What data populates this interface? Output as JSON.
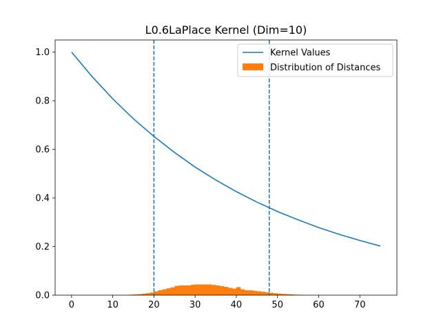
{
  "chart_data": {
    "type": "line",
    "title": "L0.6LaPlace Kernel (Dim=10)",
    "xlabel": "",
    "ylabel": "",
    "xlim": [
      -4,
      79
    ],
    "ylim": [
      0,
      1.05
    ],
    "xticks": [
      0,
      10,
      20,
      30,
      40,
      50,
      60,
      70
    ],
    "yticks": [
      0.0,
      0.2,
      0.4,
      0.6,
      0.8,
      1.0
    ],
    "xtick_labels": [
      "0",
      "10",
      "20",
      "30",
      "40",
      "50",
      "60",
      "70"
    ],
    "ytick_labels": [
      "0.0",
      "0.2",
      "0.4",
      "0.6",
      "0.8",
      "1.0"
    ],
    "grid": false,
    "legend_position": "top-right",
    "series": [
      {
        "name": "Kernel Values",
        "type": "line",
        "color": "#1f77b4",
        "x": [
          0,
          5,
          10,
          15,
          20,
          25,
          30,
          35,
          40,
          45,
          50,
          55,
          60,
          65,
          70,
          75
        ],
        "y": [
          1.0,
          0.899,
          0.808,
          0.726,
          0.653,
          0.587,
          0.527,
          0.474,
          0.426,
          0.383,
          0.344,
          0.31,
          0.278,
          0.25,
          0.225,
          0.202
        ]
      },
      {
        "name": "Distribution of Distances",
        "type": "histogram",
        "color": "#ff7f0e",
        "bin_width": 1,
        "bin_starts": [
          14,
          15,
          16,
          17,
          18,
          19,
          20,
          21,
          22,
          23,
          24,
          25,
          26,
          27,
          28,
          29,
          30,
          31,
          32,
          33,
          34,
          35,
          36,
          37,
          38,
          39,
          40,
          41,
          42,
          43,
          44,
          45,
          46,
          47,
          48,
          49,
          50,
          51,
          52,
          53,
          54,
          55
        ],
        "values": [
          0.002,
          0.003,
          0.004,
          0.006,
          0.008,
          0.011,
          0.015,
          0.02,
          0.024,
          0.028,
          0.032,
          0.038,
          0.04,
          0.04,
          0.04,
          0.043,
          0.044,
          0.044,
          0.044,
          0.044,
          0.042,
          0.04,
          0.037,
          0.034,
          0.03,
          0.027,
          0.033,
          0.024,
          0.02,
          0.02,
          0.018,
          0.016,
          0.014,
          0.012,
          0.01,
          0.008,
          0.006,
          0.005,
          0.004,
          0.003,
          0.002,
          0.001
        ]
      }
    ],
    "vlines": [
      {
        "x": 20,
        "style": "dashed",
        "color": "#1f77b4"
      },
      {
        "x": 48,
        "style": "dashed",
        "color": "#1f77b4"
      }
    ]
  }
}
